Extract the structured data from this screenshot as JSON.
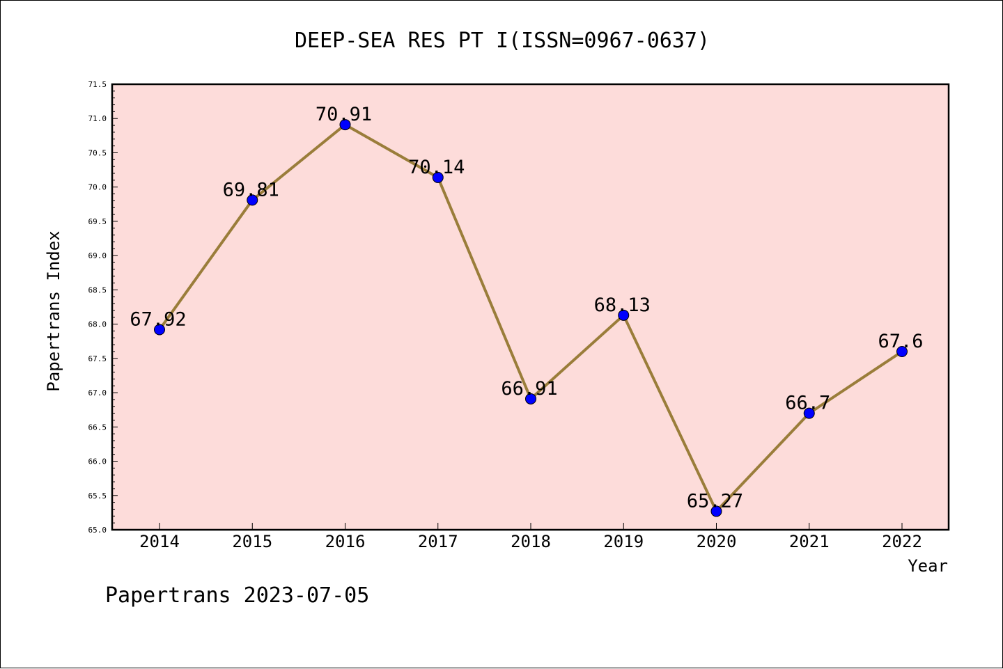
{
  "chart_data": {
    "type": "line",
    "title": "DEEP-SEA RES PT I(ISSN=0967-0637)",
    "xlabel": "Year",
    "ylabel": "Papertrans Index",
    "categories": [
      "2014",
      "2015",
      "2016",
      "2017",
      "2018",
      "2019",
      "2020",
      "2021",
      "2022"
    ],
    "series": [
      {
        "values": [
          67.92,
          69.81,
          70.91,
          70.14,
          66.91,
          68.13,
          65.27,
          66.7,
          67.6
        ],
        "labels": [
          "67.92",
          "69.81",
          "70.91",
          "70.14",
          "66.91",
          "68.13",
          "65.27",
          "66.7",
          "67.6"
        ]
      }
    ],
    "ylim": [
      65.0,
      71.5
    ],
    "yticks": [
      "65.0",
      "65.5",
      "66.0",
      "66.5",
      "67.0",
      "67.5",
      "68.0",
      "68.5",
      "69.0",
      "69.5",
      "70.0",
      "70.5",
      "71.0",
      "71.5"
    ],
    "grid": false,
    "legend": "none",
    "colors": {
      "plot_background": "#fddcda",
      "line": "#9a7d3a",
      "marker": "#0000ff",
      "axis": "#000000"
    }
  },
  "footer": "Papertrans 2023-07-05"
}
